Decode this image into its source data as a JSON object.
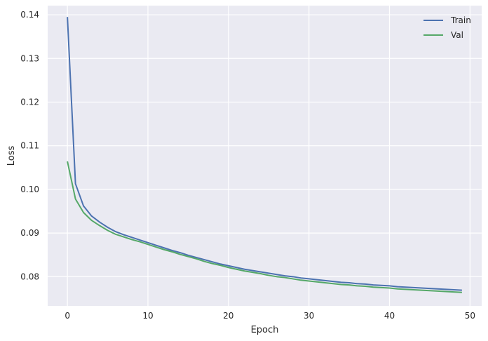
{
  "chart_data": {
    "type": "line",
    "title": "",
    "xlabel": "Epoch",
    "ylabel": "Loss",
    "xlim": [
      -2.45,
      51.45
    ],
    "ylim": [
      0.0733,
      0.1421
    ],
    "xticks": [
      0,
      10,
      20,
      30,
      40,
      50
    ],
    "yticks": [
      0.08,
      0.09,
      0.1,
      0.11,
      0.12,
      0.13,
      0.14
    ],
    "ytick_labels": [
      "0.08",
      "0.09",
      "0.10",
      "0.11",
      "0.12",
      "0.13",
      "0.14"
    ],
    "grid": true,
    "legend_position": "top-right",
    "background": "#eaeaf2",
    "x": [
      0,
      1,
      2,
      3,
      4,
      5,
      6,
      7,
      8,
      9,
      10,
      11,
      12,
      13,
      14,
      15,
      16,
      17,
      18,
      19,
      20,
      21,
      22,
      23,
      24,
      25,
      26,
      27,
      28,
      29,
      30,
      31,
      32,
      33,
      34,
      35,
      36,
      37,
      38,
      39,
      40,
      41,
      42,
      43,
      44,
      45,
      46,
      47,
      48,
      49
    ],
    "series": [
      {
        "name": "Train",
        "color": "#4c72b0",
        "values": [
          0.1395,
          0.1013,
          0.0962,
          0.0939,
          0.0925,
          0.0913,
          0.0903,
          0.0896,
          0.089,
          0.0884,
          0.0878,
          0.0872,
          0.0866,
          0.086,
          0.0855,
          0.0849,
          0.0844,
          0.0839,
          0.0834,
          0.0829,
          0.0825,
          0.0821,
          0.0817,
          0.0814,
          0.0811,
          0.0808,
          0.0805,
          0.0802,
          0.08,
          0.0797,
          0.0795,
          0.0793,
          0.0791,
          0.0789,
          0.0787,
          0.0786,
          0.0784,
          0.0783,
          0.0781,
          0.078,
          0.0779,
          0.0777,
          0.0776,
          0.0775,
          0.0774,
          0.0773,
          0.0772,
          0.0771,
          0.077,
          0.0769
        ]
      },
      {
        "name": "Val",
        "color": "#55a868",
        "values": [
          0.1064,
          0.0978,
          0.0947,
          0.0929,
          0.0917,
          0.0906,
          0.0897,
          0.0891,
          0.0885,
          0.088,
          0.0874,
          0.0868,
          0.0862,
          0.0857,
          0.0851,
          0.0846,
          0.0841,
          0.0835,
          0.083,
          0.0826,
          0.0821,
          0.0817,
          0.0813,
          0.081,
          0.0807,
          0.0803,
          0.08,
          0.0798,
          0.0795,
          0.0792,
          0.079,
          0.0788,
          0.0786,
          0.0784,
          0.0782,
          0.0781,
          0.0779,
          0.0778,
          0.0776,
          0.0775,
          0.0774,
          0.0772,
          0.0771,
          0.077,
          0.0769,
          0.0768,
          0.0767,
          0.0766,
          0.0765,
          0.0764
        ]
      }
    ]
  }
}
